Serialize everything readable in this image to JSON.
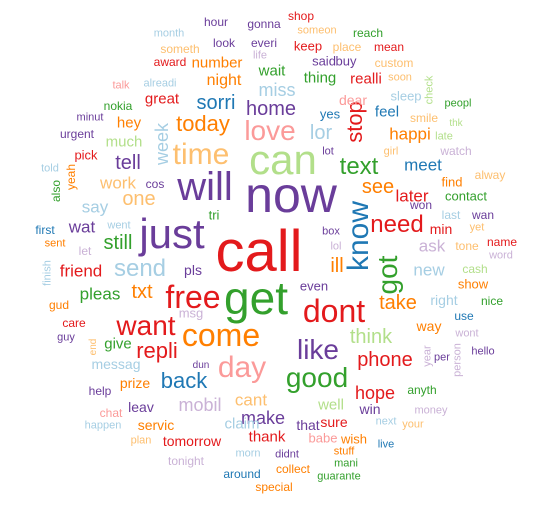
{
  "palette": {
    "red": "#e31a1c",
    "purple": "#6a3d9a",
    "green": "#33a02c",
    "lightgreen": "#b2df8a",
    "orange": "#ff7f00",
    "lightorange": "#fdbf6f",
    "pink": "#fb9a99",
    "blue": "#1f78b4",
    "lightblue": "#a6cee3",
    "lavender": "#cab2d6"
  },
  "words": [
    {
      "text": "call",
      "color": "red"
    },
    {
      "text": "now",
      "color": "purple"
    },
    {
      "text": "get",
      "color": "green"
    },
    {
      "text": "just",
      "color": "purple"
    },
    {
      "text": "can",
      "color": "lightgreen"
    },
    {
      "text": "will",
      "color": "purple"
    },
    {
      "text": "time",
      "color": "lightorange"
    },
    {
      "text": "free",
      "color": "red"
    },
    {
      "text": "dont",
      "color": "red"
    },
    {
      "text": "come",
      "color": "orange"
    },
    {
      "text": "want",
      "color": "red"
    },
    {
      "text": "know",
      "color": "blue"
    },
    {
      "text": "got",
      "color": "green"
    },
    {
      "text": "day",
      "color": "pink"
    },
    {
      "text": "like",
      "color": "purple"
    },
    {
      "text": "good",
      "color": "green"
    },
    {
      "text": "love",
      "color": "pink"
    },
    {
      "text": "text",
      "color": "green"
    },
    {
      "text": "send",
      "color": "lightblue"
    },
    {
      "text": "need",
      "color": "red"
    },
    {
      "text": "today",
      "color": "orange"
    },
    {
      "text": "home",
      "color": "purple"
    },
    {
      "text": "sorri",
      "color": "blue"
    },
    {
      "text": "repli",
      "color": "red"
    },
    {
      "text": "back",
      "color": "blue"
    },
    {
      "text": "phone",
      "color": "red"
    },
    {
      "text": "one",
      "color": "lightorange"
    },
    {
      "text": "still",
      "color": "green"
    },
    {
      "text": "tell",
      "color": "purple"
    },
    {
      "text": "txt",
      "color": "orange"
    },
    {
      "text": "take",
      "color": "orange"
    },
    {
      "text": "think",
      "color": "lightgreen"
    },
    {
      "text": "stop",
      "color": "red"
    },
    {
      "text": "see",
      "color": "orange"
    },
    {
      "text": "ill",
      "color": "orange"
    },
    {
      "text": "lor",
      "color": "lightblue"
    },
    {
      "text": "miss",
      "color": "lightblue"
    },
    {
      "text": "week",
      "color": "lightblue"
    },
    {
      "text": "hope",
      "color": "red"
    },
    {
      "text": "make",
      "color": "purple"
    },
    {
      "text": "mobil",
      "color": "lavender"
    },
    {
      "text": "cant",
      "color": "lightorange"
    },
    {
      "text": "work",
      "color": "lightorange"
    },
    {
      "text": "pleas",
      "color": "green"
    },
    {
      "text": "say",
      "color": "lightblue"
    },
    {
      "text": "happi",
      "color": "orange"
    },
    {
      "text": "meet",
      "color": "blue"
    },
    {
      "text": "new",
      "color": "lightblue"
    },
    {
      "text": "wat",
      "color": "purple"
    },
    {
      "text": "friend",
      "color": "red"
    },
    {
      "text": "later",
      "color": "red"
    },
    {
      "text": "ask",
      "color": "lavender"
    },
    {
      "text": "great",
      "color": "red"
    },
    {
      "text": "night",
      "color": "orange"
    },
    {
      "text": "number",
      "color": "orange"
    },
    {
      "text": "thing",
      "color": "green"
    },
    {
      "text": "wait",
      "color": "green"
    },
    {
      "text": "realli",
      "color": "red"
    },
    {
      "text": "feel",
      "color": "blue"
    },
    {
      "text": "much",
      "color": "lightgreen"
    },
    {
      "text": "hey",
      "color": "orange"
    },
    {
      "text": "dear",
      "color": "pink"
    },
    {
      "text": "give",
      "color": "green"
    },
    {
      "text": "well",
      "color": "lightgreen"
    },
    {
      "text": "claim",
      "color": "lightblue"
    },
    {
      "text": "thank",
      "color": "red"
    },
    {
      "text": "prize",
      "color": "orange"
    },
    {
      "text": "messag",
      "color": "lightblue"
    },
    {
      "text": "win",
      "color": "purple"
    },
    {
      "text": "leav",
      "color": "purple"
    },
    {
      "text": "servic",
      "color": "orange"
    },
    {
      "text": "tomorrow",
      "color": "red"
    },
    {
      "text": "that",
      "color": "purple"
    },
    {
      "text": "sure",
      "color": "red"
    },
    {
      "text": "babe",
      "color": "pink"
    },
    {
      "text": "wish",
      "color": "orange"
    },
    {
      "text": "pls",
      "color": "purple"
    },
    {
      "text": "tri",
      "color": "green"
    },
    {
      "text": "even",
      "color": "purple"
    },
    {
      "text": "msg",
      "color": "lavender"
    },
    {
      "text": "min",
      "color": "red"
    },
    {
      "text": "right",
      "color": "lightblue"
    },
    {
      "text": "way",
      "color": "orange"
    },
    {
      "text": "show",
      "color": "orange"
    },
    {
      "text": "contact",
      "color": "green"
    },
    {
      "text": "find",
      "color": "orange"
    },
    {
      "text": "cos",
      "color": "purple"
    },
    {
      "text": "yes",
      "color": "blue"
    },
    {
      "text": "sleep",
      "color": "lightblue"
    },
    {
      "text": "smile",
      "color": "lightorange"
    },
    {
      "text": "girl",
      "color": "lightorange"
    },
    {
      "text": "lot",
      "color": "purple"
    },
    {
      "text": "box",
      "color": "purple"
    },
    {
      "text": "lol",
      "color": "lavender"
    },
    {
      "text": "said",
      "color": "purple"
    },
    {
      "text": "buy",
      "color": "purple"
    },
    {
      "text": "keep",
      "color": "red"
    },
    {
      "text": "place",
      "color": "lightorange"
    },
    {
      "text": "mean",
      "color": "red"
    },
    {
      "text": "custom",
      "color": "lightorange"
    },
    {
      "text": "soon",
      "color": "lightorange"
    },
    {
      "text": "won",
      "color": "purple"
    },
    {
      "text": "watch",
      "color": "lavender"
    },
    {
      "text": "alway",
      "color": "lightorange"
    },
    {
      "text": "last",
      "color": "lightblue"
    },
    {
      "text": "wan",
      "color": "purple"
    },
    {
      "text": "yet",
      "color": "lightorange"
    },
    {
      "text": "tone",
      "color": "lightorange"
    },
    {
      "text": "name",
      "color": "red"
    },
    {
      "text": "word",
      "color": "lavender"
    },
    {
      "text": "cash",
      "color": "lightgreen"
    },
    {
      "text": "nice",
      "color": "green"
    },
    {
      "text": "use",
      "color": "blue"
    },
    {
      "text": "wont",
      "color": "lavender"
    },
    {
      "text": "hello",
      "color": "purple"
    },
    {
      "text": "person",
      "color": "lavender"
    },
    {
      "text": "per",
      "color": "purple"
    },
    {
      "text": "year",
      "color": "lavender"
    },
    {
      "text": "anyth",
      "color": "green"
    },
    {
      "text": "money",
      "color": "lavender"
    },
    {
      "text": "next",
      "color": "lightblue"
    },
    {
      "text": "your",
      "color": "lightorange"
    },
    {
      "text": "live",
      "color": "blue"
    },
    {
      "text": "stuff",
      "color": "orange"
    },
    {
      "text": "mani",
      "color": "green"
    },
    {
      "text": "guarante",
      "color": "green"
    },
    {
      "text": "collect",
      "color": "orange"
    },
    {
      "text": "didnt",
      "color": "purple"
    },
    {
      "text": "morn",
      "color": "lightblue"
    },
    {
      "text": "around",
      "color": "blue"
    },
    {
      "text": "special",
      "color": "orange"
    },
    {
      "text": "tonight",
      "color": "lavender"
    },
    {
      "text": "dun",
      "color": "purple"
    },
    {
      "text": "help",
      "color": "purple"
    },
    {
      "text": "chat",
      "color": "pink"
    },
    {
      "text": "happen",
      "color": "lightblue"
    },
    {
      "text": "plan",
      "color": "lightorange"
    },
    {
      "text": "award",
      "color": "red"
    },
    {
      "text": "talk",
      "color": "pink"
    },
    {
      "text": "alreadi",
      "color": "lightblue"
    },
    {
      "text": "nokia",
      "color": "green"
    },
    {
      "text": "minut",
      "color": "purple"
    },
    {
      "text": "urgent",
      "color": "purple"
    },
    {
      "text": "pick",
      "color": "red"
    },
    {
      "text": "told",
      "color": "lightblue"
    },
    {
      "text": "also",
      "color": "green"
    },
    {
      "text": "yeah",
      "color": "orange"
    },
    {
      "text": "first",
      "color": "blue"
    },
    {
      "text": "sent",
      "color": "orange"
    },
    {
      "text": "let",
      "color": "lavender"
    },
    {
      "text": "went",
      "color": "lightblue"
    },
    {
      "text": "finish",
      "color": "lightblue"
    },
    {
      "text": "gud",
      "color": "orange"
    },
    {
      "text": "care",
      "color": "red"
    },
    {
      "text": "guy",
      "color": "purple"
    },
    {
      "text": "end",
      "color": "lightorange"
    },
    {
      "text": "month",
      "color": "lightblue"
    },
    {
      "text": "hour",
      "color": "purple"
    },
    {
      "text": "gonna",
      "color": "purple"
    },
    {
      "text": "shop",
      "color": "red"
    },
    {
      "text": "someon",
      "color": "lightorange"
    },
    {
      "text": "reach",
      "color": "green"
    },
    {
      "text": "someth",
      "color": "lightorange"
    },
    {
      "text": "look",
      "color": "purple"
    },
    {
      "text": "everi",
      "color": "purple"
    },
    {
      "text": "life",
      "color": "lavender"
    },
    {
      "text": "peopl",
      "color": "green"
    },
    {
      "text": "check",
      "color": "lightgreen"
    },
    {
      "text": "thk",
      "color": "lightgreen"
    },
    {
      "text": "late",
      "color": "lightgreen"
    }
  ]
}
